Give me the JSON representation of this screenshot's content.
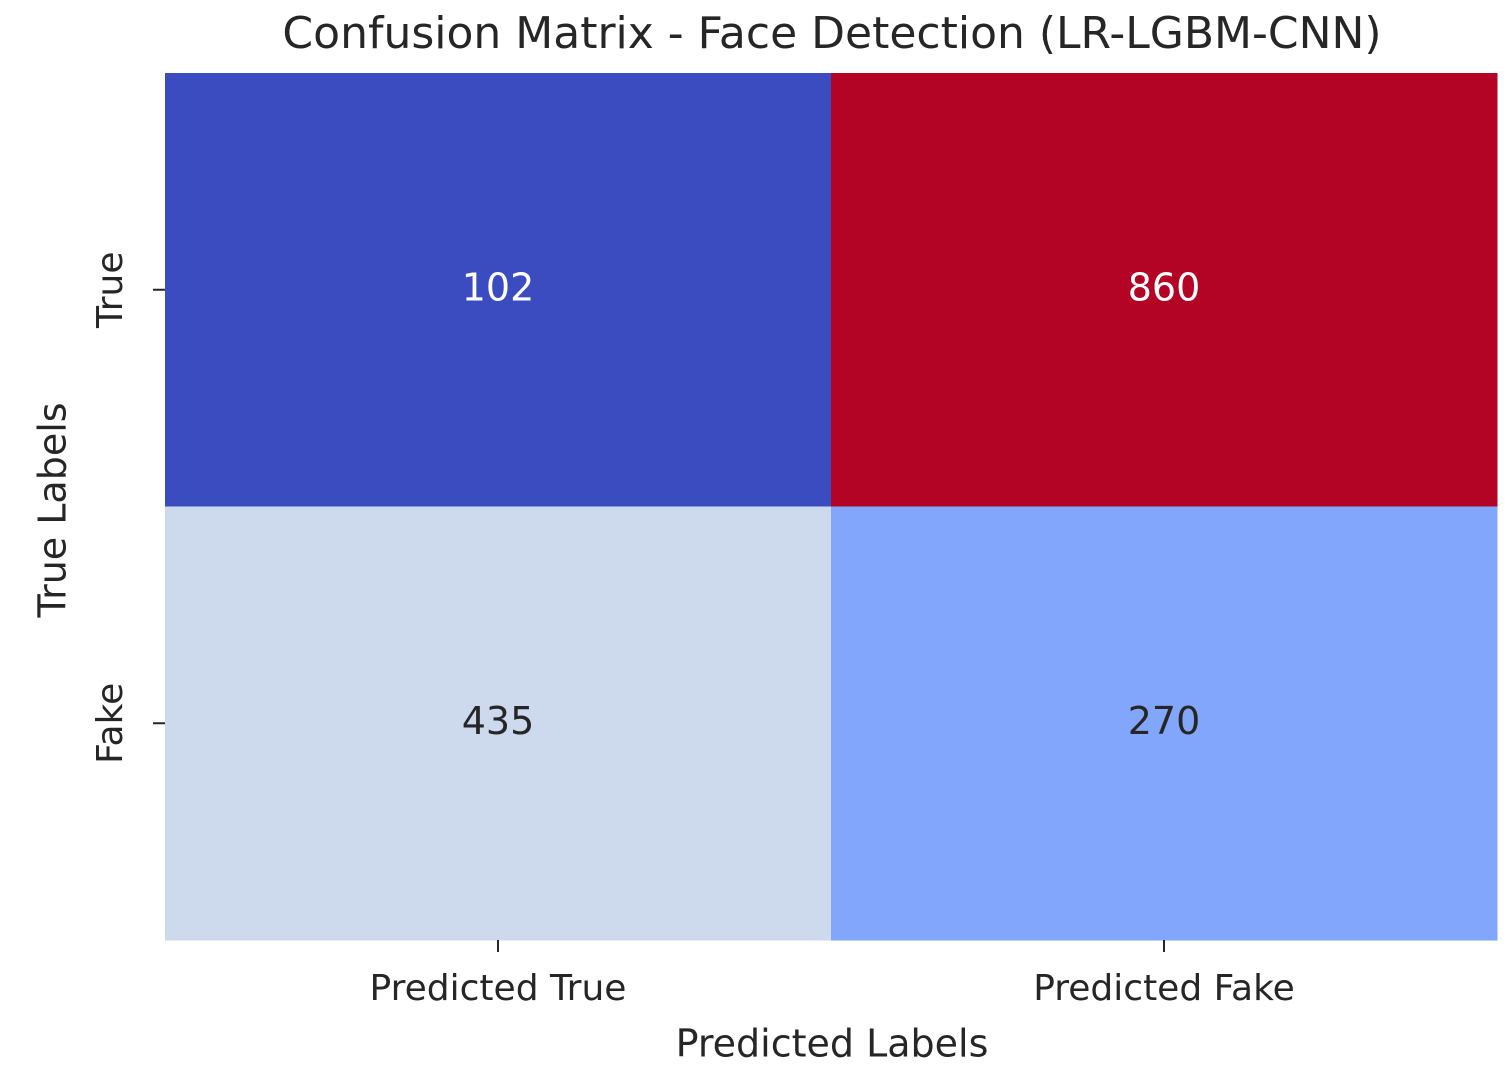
{
  "chart_data": {
    "type": "heatmap",
    "title": "Confusion Matrix - Face Detection (LR-LGBM-CNN)",
    "x_label": "Predicted Labels",
    "y_label": "True Labels",
    "x_categories": [
      "Predicted True",
      "Predicted Fake"
    ],
    "y_categories": [
      "True",
      "Fake"
    ],
    "values": [
      [
        102,
        860
      ],
      [
        435,
        270
      ]
    ],
    "colors": [
      [
        "#3b4cc0",
        "#b40426"
      ],
      [
        "#cdd9ec",
        "#82a6fb"
      ]
    ]
  }
}
